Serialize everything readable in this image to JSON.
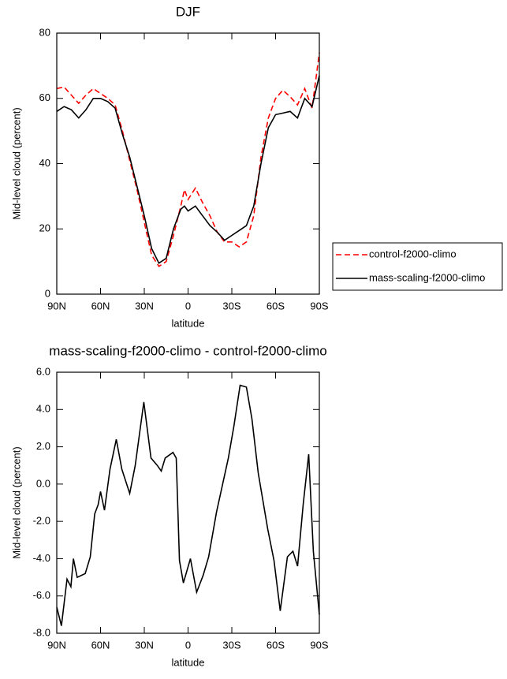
{
  "chart_data": [
    {
      "type": "line",
      "title": "DJF",
      "xlabel": "latitude",
      "ylabel": "Mid-level cloud (percent)",
      "x": [
        90,
        85,
        80,
        75,
        70,
        65,
        60,
        55,
        50,
        45,
        40,
        35,
        30,
        25,
        20,
        15,
        10,
        5,
        2.5,
        0,
        -5,
        -10,
        -15,
        -20,
        -25,
        -30,
        -35,
        -40,
        -45,
        -50,
        -55,
        -60,
        -65,
        -70,
        -75,
        -80,
        -85,
        -90
      ],
      "xlim": [
        90,
        -90
      ],
      "xticks": [
        {
          "value": 90,
          "label": "90N"
        },
        {
          "value": 60,
          "label": "60N"
        },
        {
          "value": 30,
          "label": "30N"
        },
        0,
        {
          "value": -30,
          "label": "30S"
        },
        {
          "value": -60,
          "label": "60S"
        },
        {
          "value": -90,
          "label": "90S"
        }
      ],
      "ylim": [
        0,
        80
      ],
      "yticks": [
        0,
        20,
        40,
        60,
        80
      ],
      "legend": "right",
      "series": [
        {
          "name": "control-f2000-climo",
          "color": "#ff0000",
          "style": "dashed",
          "values": [
            63,
            63.5,
            61,
            58.5,
            61,
            63,
            61.5,
            60,
            58,
            50,
            41,
            32,
            22,
            12,
            8.5,
            10,
            18,
            27,
            32,
            29,
            32.5,
            28,
            24,
            19,
            16,
            16,
            14.5,
            16,
            24,
            42,
            54,
            60,
            62.5,
            60.5,
            58,
            63,
            57,
            74
          ]
        },
        {
          "name": "mass-scaling-f2000-climo",
          "color": "#000000",
          "style": "solid",
          "values": [
            56,
            57.5,
            56.5,
            54,
            56.5,
            60,
            60,
            59,
            57,
            49,
            42,
            33,
            24,
            14,
            9.5,
            11,
            20,
            26,
            27,
            25.5,
            27,
            24,
            21,
            19,
            16.5,
            18,
            19.5,
            21,
            27,
            40,
            51,
            55,
            55.5,
            56,
            54,
            60,
            57.5,
            67
          ]
        }
      ]
    },
    {
      "type": "line",
      "title": "mass-scaling-f2000-climo - control-f2000-climo",
      "xlabel": "latitude",
      "ylabel": "Mid-level cloud (percent)",
      "x": [
        90,
        86.8,
        83,
        80.3,
        78.6,
        76,
        70.5,
        67,
        64,
        61.6,
        60,
        57.3,
        53.5,
        49.2,
        45.4,
        40,
        36.2,
        30.3,
        25.4,
        21.1,
        18.4,
        15.7,
        10.3,
        8.1,
        5.9,
        3.2,
        -1.6,
        -5.9,
        -10.3,
        -14.1,
        -19.5,
        -27.6,
        -31.4,
        -35.7,
        -40,
        -43.8,
        -48.1,
        -54.6,
        -58.9,
        -63.2,
        -68.1,
        -71.9,
        -75.1,
        -78.9,
        -82.7,
        -85.9,
        -90
      ],
      "values": [
        -6.6,
        -7.6,
        -5.1,
        -5.5,
        -4.0,
        -5.0,
        -4.8,
        -3.9,
        -1.6,
        -1.1,
        -0.4,
        -1.4,
        0.8,
        2.4,
        0.8,
        -0.5,
        1.0,
        4.4,
        1.4,
        1.0,
        0.7,
        1.4,
        1.7,
        1.4,
        -4.1,
        -5.3,
        -4.0,
        -5.8,
        -4.9,
        -3.9,
        -1.5,
        1.4,
        3.1,
        5.3,
        5.2,
        3.5,
        0.6,
        -2.4,
        -4.1,
        -6.8,
        -3.9,
        -3.6,
        -4.4,
        -1.1,
        1.6,
        -3.6,
        -7.0
      ],
      "color": "#000000",
      "xlim": [
        90,
        -90
      ],
      "xticks": [
        {
          "value": 90,
          "label": "90N"
        },
        {
          "value": 60,
          "label": "60N"
        },
        {
          "value": 30,
          "label": "30N"
        },
        0,
        {
          "value": -30,
          "label": "30S"
        },
        {
          "value": -60,
          "label": "60S"
        },
        {
          "value": -90,
          "label": "90S"
        }
      ],
      "ylim": [
        -8,
        6
      ],
      "yticks": [
        {
          "value": -8,
          "label": "-8.0"
        },
        {
          "value": -6,
          "label": "-6.0"
        },
        {
          "value": -4,
          "label": "-4.0"
        },
        {
          "value": -2,
          "label": "-2.0"
        },
        {
          "value": 0,
          "label": "0.0"
        },
        {
          "value": 2,
          "label": "2.0"
        },
        {
          "value": 4,
          "label": "4.0"
        },
        {
          "value": 6,
          "label": "6.0"
        }
      ]
    }
  ]
}
